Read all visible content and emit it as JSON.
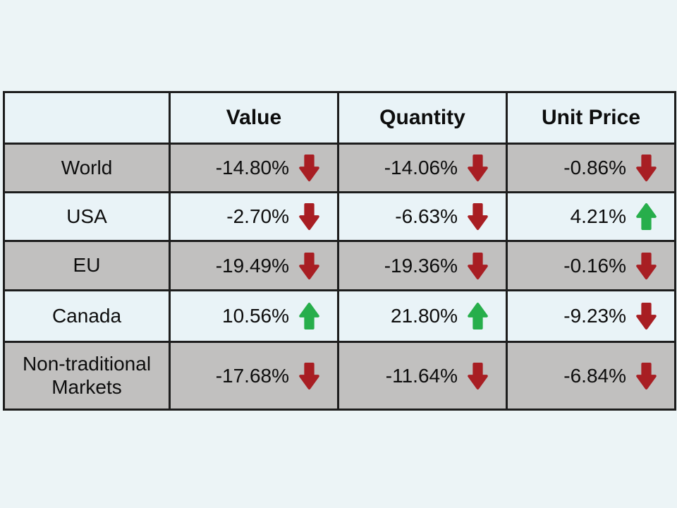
{
  "chart_data": {
    "type": "table",
    "columns": [
      "",
      "Value",
      "Quantity",
      "Unit Price"
    ],
    "rows": [
      {
        "label": "World",
        "cells": [
          {
            "value": "-14.80%",
            "direction": "down"
          },
          {
            "value": "-14.06%",
            "direction": "down"
          },
          {
            "value": "-0.86%",
            "direction": "down"
          }
        ]
      },
      {
        "label": "USA",
        "cells": [
          {
            "value": "-2.70%",
            "direction": "down"
          },
          {
            "value": "-6.63%",
            "direction": "down"
          },
          {
            "value": "4.21%",
            "direction": "up"
          }
        ]
      },
      {
        "label": "EU",
        "cells": [
          {
            "value": "-19.49%",
            "direction": "down"
          },
          {
            "value": "-19.36%",
            "direction": "down"
          },
          {
            "value": "-0.16%",
            "direction": "down"
          }
        ]
      },
      {
        "label": "Canada",
        "cells": [
          {
            "value": "10.56%",
            "direction": "up"
          },
          {
            "value": "21.80%",
            "direction": "up"
          },
          {
            "value": "-9.23%",
            "direction": "down"
          }
        ]
      },
      {
        "label": "Non-traditional Markets",
        "cells": [
          {
            "value": "-17.68%",
            "direction": "down"
          },
          {
            "value": "-11.64%",
            "direction": "down"
          },
          {
            "value": "-6.84%",
            "direction": "down"
          }
        ]
      }
    ],
    "layout": {
      "grid": "black-bordered",
      "shaded_rows": [
        "World",
        "EU",
        "Non-traditional Markets"
      ]
    }
  },
  "icons": {
    "up": {
      "name": "up-arrow-icon",
      "glyph": "⬆"
    },
    "down": {
      "name": "down-arrow-icon",
      "glyph": "⬇"
    }
  },
  "colors": {
    "background": "#ecf4f6",
    "row_light": "#e9f3f7",
    "row_shaded": "#c1c0bf",
    "border": "#1d1d1d",
    "text": "#0d0d0d",
    "up_arrow": "#27ae4b",
    "down_arrow": "#a81e23"
  }
}
